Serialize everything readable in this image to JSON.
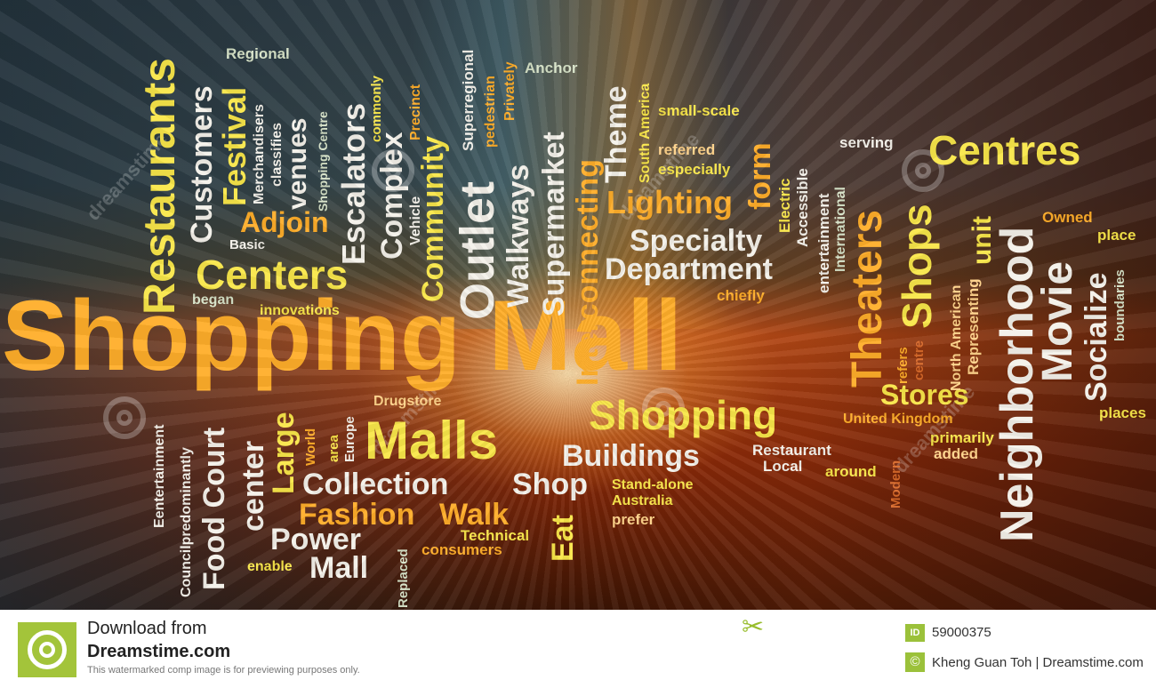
{
  "cloud_words": {
    "shopping_mall": "Shopping Mall",
    "malls": "Malls",
    "shopping": "Shopping",
    "centers": "Centers",
    "restaurants": "Restaurants",
    "centres": "Centres",
    "neighborhood": "Neighborhood",
    "outlet": "Outlet",
    "theaters": "Theaters",
    "shops": "Shops",
    "movie": "Movie",
    "socialize": "Socialize",
    "interconnecting": "Interconnecting",
    "customers": "Customers",
    "festival": "Festival",
    "adjoin": "Adjoin",
    "escalators": "Escalators",
    "complex": "Complex",
    "community": "Community",
    "walkways": "Walkways",
    "supermarket": "Supermarket",
    "theme": "Theme",
    "lighting": "Lighting",
    "form": "form",
    "specialty": "Specialty",
    "department": "Department",
    "unit": "unit",
    "stores": "Stores",
    "large": "Large",
    "food_court": "Food Court",
    "center": "center",
    "collection": "Collection",
    "fashion": "Fashion",
    "walk": "Walk",
    "power": "Power",
    "mall": "Mall",
    "buildings": "Buildings",
    "shop": "Shop",
    "eat": "Eat",
    "venues": "venues",
    "regional": "Regional",
    "anchor": "Anchor",
    "small_scale": "small-scale",
    "referred": "referred",
    "especially": "especially",
    "serving": "serving",
    "owned": "Owned",
    "place": "place",
    "boundaries": "boundaries",
    "places": "places",
    "chiefly": "chiefly",
    "basic": "Basic",
    "began": "began",
    "innovations": "innovations",
    "drugstore": "Drugstore",
    "united_kingdom": "United Kingdom",
    "primarily": "primarily",
    "added": "added",
    "restaurant": "Restaurant",
    "local": "Local",
    "around": "around",
    "stand_alone": "Stand-alone",
    "australia": "Australia",
    "prefer": "prefer",
    "technical": "Technical",
    "consumers": "consumers",
    "enable": "enable",
    "merchandisers": "Merchandisers",
    "classifies": "classifies",
    "shopping_centre": "Shopping Centre",
    "commonly": "commonly",
    "precinct": "Precinct",
    "vehicle": "Vehicle",
    "superregional": "Superregional",
    "pedestrian": "pedestrian",
    "privately": "Privately",
    "south_america": "South America",
    "electric": "Electric",
    "accessible": "Accessible",
    "international": "International",
    "entertainment_lc": "entertainment",
    "north_american": "North American",
    "representing": "Representing",
    "refers": "refers",
    "centre": "centre",
    "modern": "Modern",
    "eentertainment": "Eentertainment",
    "councilpredominantly": "Councilpredominantly",
    "world": "World",
    "area": "area",
    "europe": "Europe",
    "replaced": "Replaced"
  },
  "watermark": {
    "text": "dreamstime"
  },
  "footer": {
    "download_line1": "Download from",
    "download_line2": "Dreamstime.com",
    "notice": "This watermarked comp image is for previewing purposes only.",
    "id_label": "ID",
    "id_value": "59000375",
    "copyright_symbol": "©",
    "credit": "Kheng Guan Toh | Dreamstime.com"
  },
  "colors": {
    "brand_green": "#9bc13a",
    "word_yellow": "#f9e74a",
    "word_orange": "#ffae2a",
    "word_white": "#f4f1ea"
  }
}
